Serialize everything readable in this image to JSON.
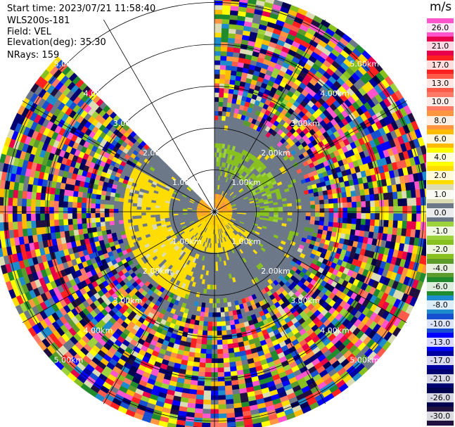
{
  "header": {
    "start_time": "Start time: 2023/07/21 11:58:40",
    "instrument": "WLS200s-181",
    "field": "Field: VEL",
    "elevation": "Elevation(deg): 35.30",
    "nrays": "NRays: 159"
  },
  "colorbar": {
    "unit": "m/s",
    "levels": [
      {
        "label": "26.0",
        "color": "#ff55cc"
      },
      {
        "label": "21.0",
        "color": "#e8004a"
      },
      {
        "label": "17.0",
        "color": "#ff2020"
      },
      {
        "label": "13.0",
        "color": "#ff5a4a"
      },
      {
        "label": "10.0",
        "color": "#ff7a66"
      },
      {
        "label": "8.0",
        "color": "#ff9540"
      },
      {
        "label": "6.0",
        "color": "#ffbb00"
      },
      {
        "label": "4.0",
        "color": "#ffff00"
      },
      {
        "label": "2.0",
        "color": "#ffdd00"
      },
      {
        "label": "1.0",
        "color": "#dcdcb4"
      },
      {
        "label": "0.0",
        "color": "#6c7888"
      },
      {
        "label": "-1.0",
        "color": "#9cd23c"
      },
      {
        "label": "-2.0",
        "color": "#88c020"
      },
      {
        "label": "-4.0",
        "color": "#5c9c2c"
      },
      {
        "label": "-6.0",
        "color": "#208b2c"
      },
      {
        "label": "-8.0",
        "color": "#1e8ccc"
      },
      {
        "label": "-10.0",
        "color": "#1650d0"
      },
      {
        "label": "-13.0",
        "color": "#0000ff"
      },
      {
        "label": "-17.0",
        "color": "#0000a0"
      },
      {
        "label": "-21.0",
        "color": "#000070"
      },
      {
        "label": "-26.0",
        "color": "#000050"
      },
      {
        "label": "-30.0",
        "color": "#201040"
      }
    ]
  },
  "chart_data": {
    "type": "heatmap",
    "projection": "polar",
    "field": "VEL",
    "unit": "m/s",
    "range_rings_km": [
      1.0,
      2.0,
      3.0,
      4.0,
      5.0
    ],
    "ring_labels": [
      "1.00km",
      "2.00km",
      "3.00km",
      "4.00km",
      "5.00km"
    ],
    "max_range_km": 5.2,
    "nrays": 159,
    "azimuth_spokes_deg": [
      0,
      30,
      60,
      90,
      120,
      150,
      180,
      210,
      240,
      270,
      300,
      330
    ],
    "missing_sector_deg": [
      315,
      360
    ],
    "near_field_description_km": {
      "positive_yellow_sector_deg": [
        200,
        300
      ],
      "negative_green_sector_deg": [
        0,
        100
      ],
      "low_velocity_gray_radius_km": 2.1
    }
  }
}
